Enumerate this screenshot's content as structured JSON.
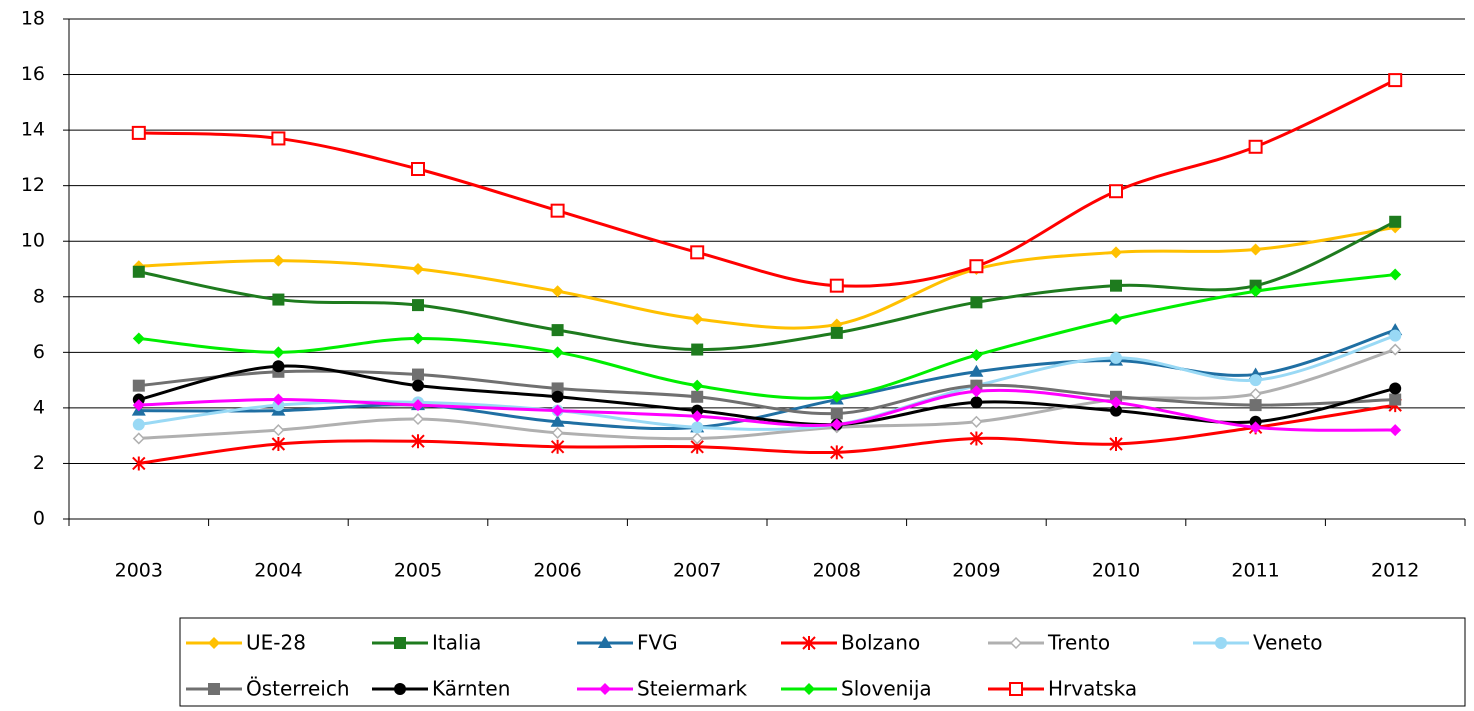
{
  "chart_data": {
    "type": "line",
    "categories": [
      "2003",
      "2004",
      "2005",
      "2006",
      "2007",
      "2008",
      "2009",
      "2010",
      "2011",
      "2012"
    ],
    "ylim": [
      0,
      18
    ],
    "yticks": [
      0,
      2,
      4,
      6,
      8,
      10,
      12,
      14,
      16,
      18
    ],
    "grid": true,
    "legend": "bottom",
    "series": [
      {
        "name": "UE-28",
        "color": "#ffc000",
        "marker": "diamond",
        "values": [
          9.1,
          9.3,
          9.0,
          8.2,
          7.2,
          7.0,
          9.0,
          9.6,
          9.7,
          10.5
        ]
      },
      {
        "name": "Italia",
        "color": "#1e7b1e",
        "marker": "square",
        "values": [
          8.9,
          7.9,
          7.7,
          6.8,
          6.1,
          6.7,
          7.8,
          8.4,
          8.4,
          10.7
        ]
      },
      {
        "name": "FVG",
        "color": "#1f6fa3",
        "marker": "triangle",
        "values": [
          3.9,
          3.9,
          4.1,
          3.5,
          3.3,
          4.3,
          5.3,
          5.7,
          5.2,
          6.8
        ]
      },
      {
        "name": "Bolzano",
        "color": "#ff0000",
        "marker": "asterisk",
        "values": [
          2.0,
          2.7,
          2.8,
          2.6,
          2.6,
          2.4,
          2.9,
          2.7,
          3.3,
          4.1
        ]
      },
      {
        "name": "Trento",
        "color": "#b0b0b0",
        "marker": "open-diamond",
        "values": [
          2.9,
          3.2,
          3.6,
          3.1,
          2.9,
          3.3,
          3.5,
          4.3,
          4.5,
          6.1
        ]
      },
      {
        "name": "Veneto",
        "color": "#99d9f5",
        "marker": "circle",
        "values": [
          3.4,
          4.1,
          4.2,
          3.9,
          3.3,
          3.4,
          4.8,
          5.8,
          5.0,
          6.6
        ]
      },
      {
        "name": "Österreich",
        "color": "#707070",
        "marker": "square",
        "values": [
          4.8,
          5.3,
          5.2,
          4.7,
          4.4,
          3.8,
          4.8,
          4.4,
          4.1,
          4.3
        ]
      },
      {
        "name": "Kärnten",
        "color": "#000000",
        "marker": "circle",
        "values": [
          4.3,
          5.5,
          4.8,
          4.4,
          3.9,
          3.4,
          4.2,
          3.9,
          3.5,
          4.7
        ]
      },
      {
        "name": "Steiermark",
        "color": "#ff00ff",
        "marker": "diamond",
        "values": [
          4.1,
          4.3,
          4.1,
          3.9,
          3.7,
          3.4,
          4.6,
          4.2,
          3.3,
          3.2
        ]
      },
      {
        "name": "Slovenija",
        "color": "#00ee00",
        "marker": "diamond",
        "values": [
          6.5,
          6.0,
          6.5,
          6.0,
          4.8,
          4.4,
          5.9,
          7.2,
          8.2,
          8.8
        ]
      },
      {
        "name": "Hrvatska",
        "color": "#ff0000",
        "marker": "open-square",
        "values": [
          13.9,
          13.7,
          12.6,
          11.1,
          9.6,
          8.4,
          9.1,
          11.8,
          13.4,
          15.8
        ]
      }
    ]
  }
}
